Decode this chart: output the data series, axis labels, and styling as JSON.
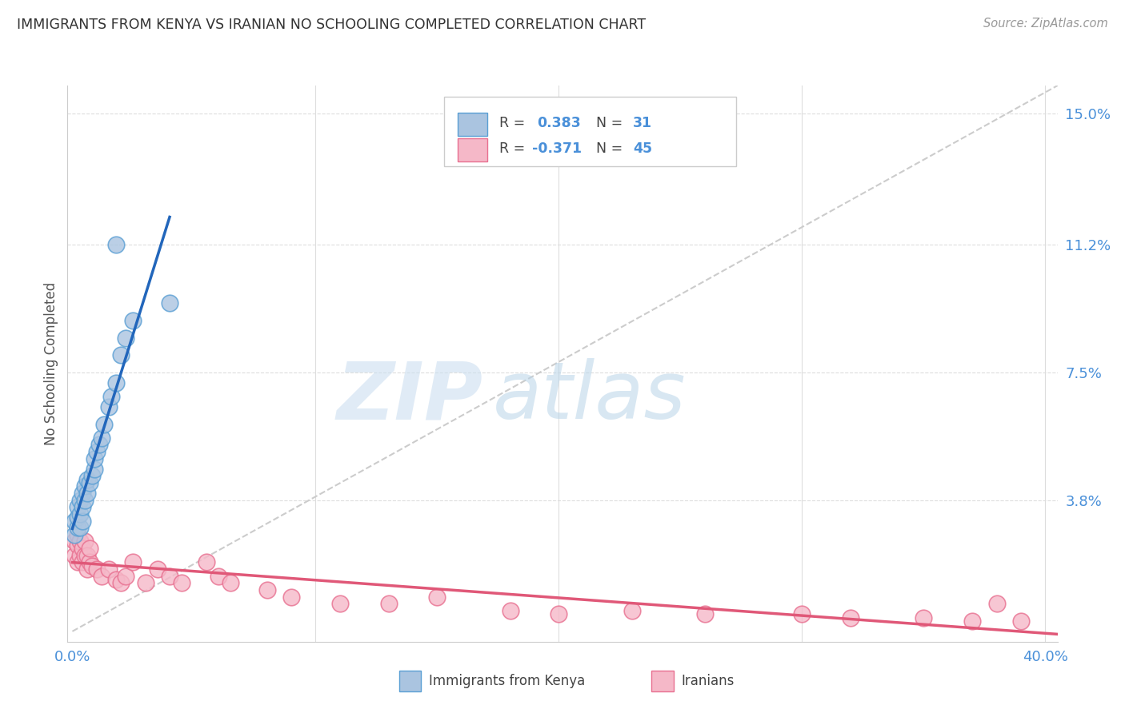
{
  "title": "IMMIGRANTS FROM KENYA VS IRANIAN NO SCHOOLING COMPLETED CORRELATION CHART",
  "source": "Source: ZipAtlas.com",
  "ylabel": "No Schooling Completed",
  "yticks": [
    0.0,
    0.038,
    0.075,
    0.112,
    0.15
  ],
  "ytick_labels": [
    "",
    "3.8%",
    "7.5%",
    "11.2%",
    "15.0%"
  ],
  "xtick_labels": [
    "0.0%",
    "",
    "",
    "",
    "40.0%"
  ],
  "xlim": [
    -0.002,
    0.405
  ],
  "ylim": [
    -0.003,
    0.158
  ],
  "kenya_R": 0.383,
  "kenya_N": 31,
  "iran_R": -0.371,
  "iran_N": 45,
  "kenya_color": "#aac4e0",
  "kenya_edge_color": "#5a9fd4",
  "kenya_line_color": "#2266bb",
  "iran_color": "#f5b8c8",
  "iran_edge_color": "#e87090",
  "iran_line_color": "#e05878",
  "diagonal_color": "#cccccc",
  "kenya_x": [
    0.001,
    0.001,
    0.002,
    0.002,
    0.002,
    0.003,
    0.003,
    0.003,
    0.004,
    0.004,
    0.004,
    0.005,
    0.005,
    0.006,
    0.006,
    0.007,
    0.008,
    0.009,
    0.009,
    0.01,
    0.011,
    0.012,
    0.013,
    0.015,
    0.016,
    0.018,
    0.02,
    0.022,
    0.025,
    0.018,
    0.04
  ],
  "kenya_y": [
    0.028,
    0.032,
    0.03,
    0.033,
    0.036,
    0.03,
    0.034,
    0.038,
    0.032,
    0.036,
    0.04,
    0.038,
    0.042,
    0.04,
    0.044,
    0.043,
    0.045,
    0.047,
    0.05,
    0.052,
    0.054,
    0.056,
    0.06,
    0.065,
    0.068,
    0.072,
    0.08,
    0.085,
    0.09,
    0.112,
    0.095
  ],
  "iran_x": [
    0.001,
    0.001,
    0.002,
    0.002,
    0.002,
    0.003,
    0.003,
    0.004,
    0.004,
    0.005,
    0.005,
    0.006,
    0.006,
    0.007,
    0.007,
    0.008,
    0.01,
    0.012,
    0.015,
    0.018,
    0.02,
    0.022,
    0.025,
    0.03,
    0.035,
    0.04,
    0.045,
    0.055,
    0.06,
    0.065,
    0.08,
    0.09,
    0.11,
    0.13,
    0.15,
    0.18,
    0.2,
    0.23,
    0.26,
    0.3,
    0.32,
    0.35,
    0.37,
    0.38,
    0.39
  ],
  "iran_y": [
    0.022,
    0.026,
    0.02,
    0.025,
    0.028,
    0.022,
    0.026,
    0.02,
    0.024,
    0.022,
    0.026,
    0.018,
    0.022,
    0.02,
    0.024,
    0.019,
    0.018,
    0.016,
    0.018,
    0.015,
    0.014,
    0.016,
    0.02,
    0.014,
    0.018,
    0.016,
    0.014,
    0.02,
    0.016,
    0.014,
    0.012,
    0.01,
    0.008,
    0.008,
    0.01,
    0.006,
    0.005,
    0.006,
    0.005,
    0.005,
    0.004,
    0.004,
    0.003,
    0.008,
    0.003
  ],
  "watermark_zip": "ZIP",
  "watermark_atlas": "atlas",
  "background_color": "#ffffff",
  "grid_color": "#dddddd",
  "tick_color": "#4a90d9",
  "label_color": "#555555"
}
